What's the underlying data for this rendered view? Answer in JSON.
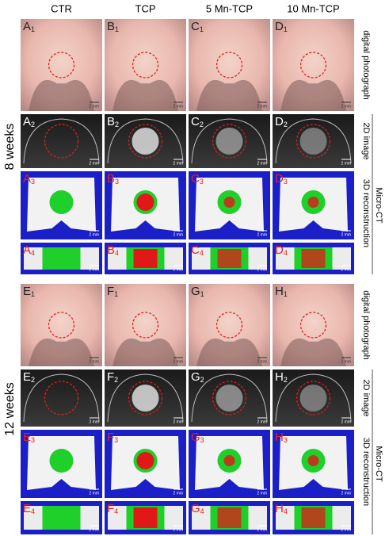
{
  "columns": [
    "CTR",
    "TCP",
    "5 Mn-TCP",
    "10 Mn-TCP"
  ],
  "row_numbers": [
    "1",
    "2",
    "3",
    "4"
  ],
  "side_labels": [
    "digital photograph",
    "2D image",
    "3D reconstruction"
  ],
  "micro_ct": "Micro-CT",
  "scale_bar": "2 mm",
  "groups": [
    {
      "label": "8 weeks",
      "letters": [
        "A",
        "B",
        "C",
        "D"
      ]
    },
    {
      "label": "12 weeks",
      "letters": [
        "E",
        "F",
        "G",
        "H"
      ]
    }
  ]
}
